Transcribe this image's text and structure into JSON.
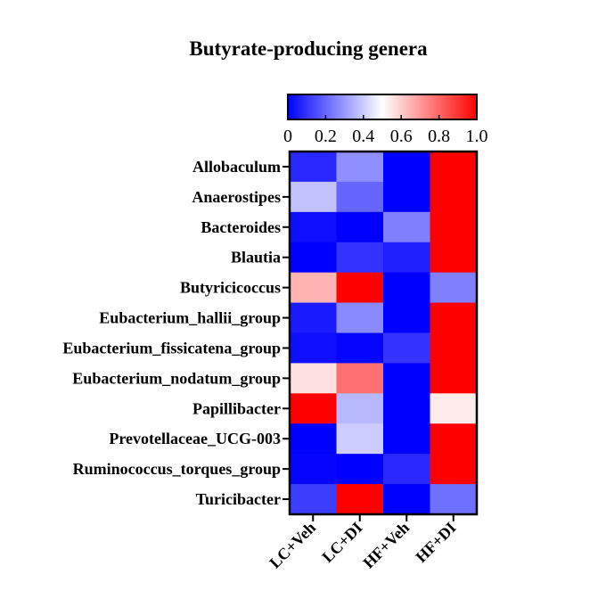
{
  "chart_data": {
    "type": "heatmap",
    "title": "Butyrate-producing genera",
    "rows": [
      "Allobaculum",
      "Anaerostipes",
      "Bacteroides",
      "Blautia",
      "Butyricicoccus",
      "Eubacterium_hallii_group",
      "Eubacterium_fissicatena_group",
      "Eubacterium_nodatum_group",
      "Papillibacter",
      "Prevotellaceae_UCG-003",
      "Ruminococcus_torques_group",
      "Turicibacter"
    ],
    "columns": [
      "LC+Veh",
      "LC+DI",
      "HF+Veh",
      "HF+DI"
    ],
    "values": [
      [
        0.08,
        0.28,
        0.0,
        1.0
      ],
      [
        0.38,
        0.2,
        0.0,
        1.0
      ],
      [
        0.03,
        0.0,
        0.25,
        1.0
      ],
      [
        0.0,
        0.1,
        0.06,
        1.0
      ],
      [
        0.65,
        1.0,
        0.0,
        0.25
      ],
      [
        0.05,
        0.27,
        0.0,
        1.0
      ],
      [
        0.03,
        0.01,
        0.1,
        1.0
      ],
      [
        0.56,
        0.78,
        0.0,
        1.0
      ],
      [
        1.0,
        0.36,
        0.0,
        0.54
      ],
      [
        0.0,
        0.4,
        0.0,
        1.0
      ],
      [
        0.01,
        0.0,
        0.08,
        1.0
      ],
      [
        0.12,
        1.0,
        0.0,
        0.22
      ]
    ],
    "colorbar": {
      "min": 0,
      "max": 1.0,
      "ticks": [
        "0",
        "0.2",
        "0.4",
        "0.6",
        "0.8",
        "1.0"
      ],
      "colors": {
        "low": "#0000ff",
        "mid": "#ffffff",
        "high": "#ff0000"
      }
    }
  }
}
